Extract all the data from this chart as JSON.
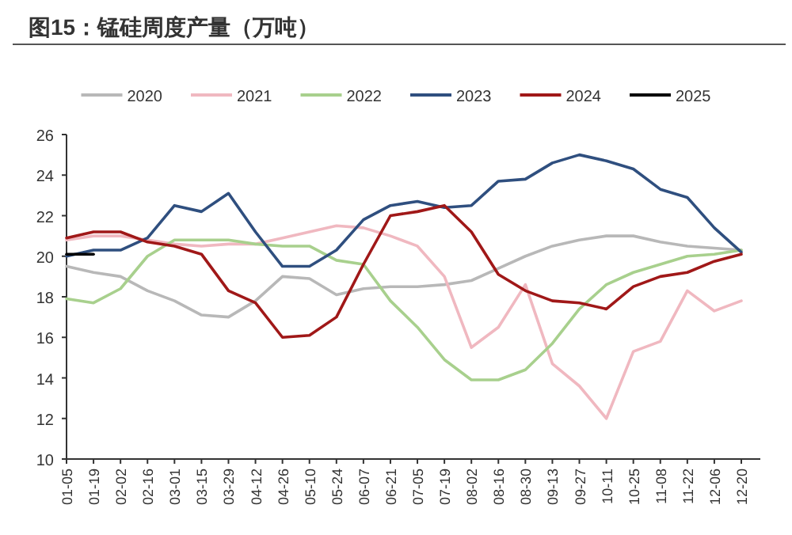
{
  "chart_data": {
    "type": "line",
    "title": "图15：锰硅周度产量（万吨）",
    "categories": [
      "01-05",
      "01-19",
      "02-02",
      "02-16",
      "03-01",
      "03-15",
      "03-29",
      "04-12",
      "04-26",
      "05-10",
      "05-24",
      "06-07",
      "06-21",
      "07-05",
      "07-19",
      "08-02",
      "08-16",
      "08-30",
      "09-13",
      "09-27",
      "10-11",
      "10-25",
      "11-08",
      "11-22",
      "12-06",
      "12-20"
    ],
    "series": [
      {
        "name": "2020",
        "color": "#b8b8b8",
        "values": [
          19.5,
          19.2,
          19.0,
          18.3,
          17.8,
          17.1,
          17.0,
          17.8,
          19.0,
          18.9,
          18.1,
          18.4,
          18.5,
          18.5,
          18.6,
          18.8,
          19.4,
          20.0,
          20.5,
          20.8,
          21.0,
          21.0,
          20.7,
          20.5,
          20.4,
          20.3
        ]
      },
      {
        "name": "2021",
        "color": "#f0b8c0",
        "values": [
          20.8,
          21.0,
          21.0,
          20.8,
          20.6,
          20.5,
          20.6,
          20.6,
          20.9,
          21.2,
          21.5,
          21.4,
          21.0,
          20.5,
          19.0,
          15.5,
          16.5,
          18.6,
          14.7,
          13.6,
          12.0,
          15.3,
          15.8,
          18.3,
          17.3,
          17.8
        ]
      },
      {
        "name": "2022",
        "color": "#a8d08d",
        "values": [
          17.9,
          17.7,
          18.4,
          20.0,
          20.8,
          20.8,
          20.8,
          20.6,
          20.5,
          20.5,
          19.8,
          19.6,
          17.8,
          16.5,
          14.9,
          13.9,
          13.9,
          14.4,
          15.7,
          17.4,
          18.6,
          19.2,
          19.6,
          20.0,
          20.1,
          20.3
        ]
      },
      {
        "name": "2023",
        "color": "#2f4f7f",
        "values": [
          20.0,
          20.3,
          20.3,
          20.9,
          22.5,
          22.2,
          23.1,
          21.2,
          19.5,
          19.5,
          20.3,
          21.8,
          22.5,
          22.7,
          22.4,
          22.5,
          23.7,
          23.8,
          24.6,
          25.0,
          24.7,
          24.3,
          23.3,
          22.9,
          21.4,
          20.2
        ]
      },
      {
        "name": "2024",
        "color": "#a01818",
        "values": [
          20.9,
          21.2,
          21.2,
          20.7,
          20.5,
          20.1,
          18.3,
          17.7,
          16.0,
          16.1,
          17.0,
          19.6,
          22.0,
          22.2,
          22.5,
          21.2,
          19.1,
          18.3,
          17.8,
          17.7,
          17.4,
          18.5,
          19.0,
          19.2,
          19.75,
          20.1
        ]
      },
      {
        "name": "2025",
        "color": "#000000",
        "values": [
          20.1,
          20.1,
          null,
          null,
          null,
          null,
          null,
          null,
          null,
          null,
          null,
          null,
          null,
          null,
          null,
          null,
          null,
          null,
          null,
          null,
          null,
          null,
          null,
          null,
          null,
          null
        ]
      }
    ],
    "ylim": [
      10,
      26
    ],
    "yticks": [
      10,
      12,
      14,
      16,
      18,
      20,
      22,
      24,
      26
    ],
    "grid": false,
    "legend": "top",
    "line_style": "solid",
    "marker": "none"
  }
}
